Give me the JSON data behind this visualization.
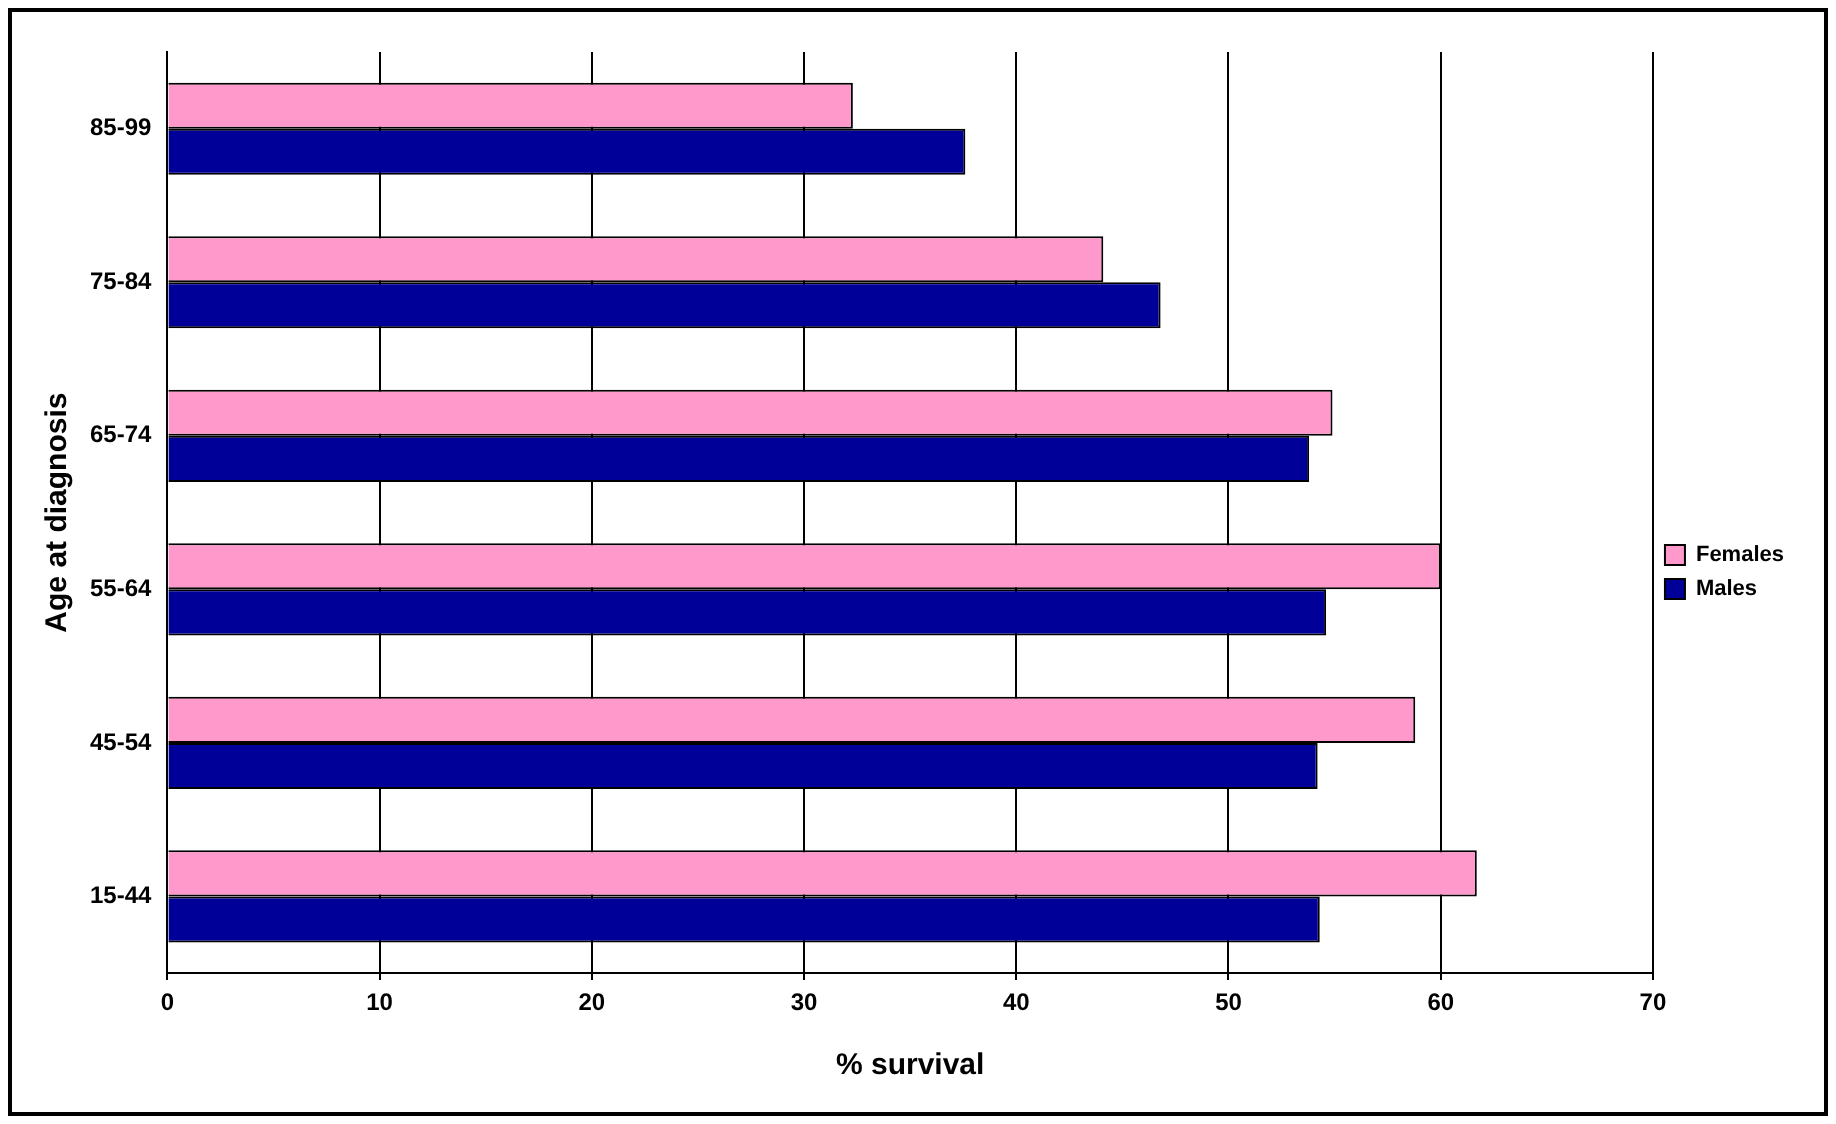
{
  "chart_data": {
    "type": "bar",
    "orientation": "horizontal",
    "xlabel": "% survival",
    "ylabel": "Age at diagnosis",
    "categories": [
      "85-99",
      "75-84",
      "65-74",
      "55-64",
      "45-54",
      "15-44"
    ],
    "series": [
      {
        "name": "Females",
        "color": "#ff99cc",
        "values": [
          32.3,
          44.1,
          54.9,
          60.0,
          58.8,
          61.7
        ]
      },
      {
        "name": "Males",
        "color": "#000099",
        "values": [
          37.6,
          46.8,
          53.8,
          54.6,
          54.2,
          54.3
        ]
      }
    ],
    "xlim": [
      0,
      70
    ],
    "xticks": [
      0,
      10,
      20,
      30,
      40,
      50,
      60,
      70
    ],
    "grid": "x",
    "legend": "right"
  }
}
